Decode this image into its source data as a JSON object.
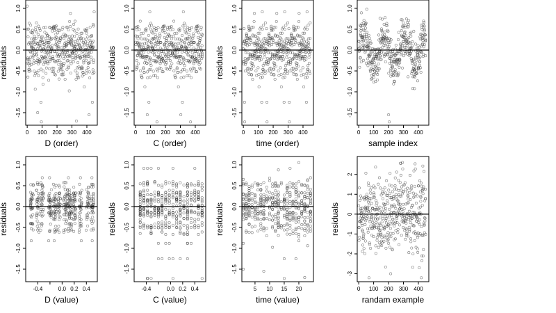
{
  "chart_data": [
    {
      "type": "scatter",
      "xlabel": "D (order)",
      "ylabel": "residuals",
      "xlim": [
        -10,
        470
      ],
      "ylim": [
        -1.8,
        1.2
      ],
      "xticks": [
        0,
        100,
        200,
        300,
        400
      ],
      "xtick_labels": [
        "0",
        "100",
        "200",
        "300",
        "400"
      ],
      "yticks": [
        -1.5,
        -1.0,
        -0.5,
        0.0,
        0.5,
        1.0
      ],
      "ytick_labels": [
        "-1.5",
        "-1.0",
        "-0.5",
        "0.0",
        "0.5",
        "1.0"
      ],
      "reference_line": 0,
      "points": "generated",
      "x_sample": "order",
      "n_points": 450,
      "data_note": "Residuals plotted against row order; dense cloud spread roughly between -1.7 and 1.1, centered near 0.",
      "hline_y": 0
    },
    {
      "type": "scatter",
      "xlabel": "C (order)",
      "ylabel": "residuals",
      "xlim": [
        -10,
        470
      ],
      "ylim": [
        -1.8,
        1.2
      ],
      "xticks": [
        0,
        100,
        200,
        300,
        400
      ],
      "xtick_labels": [
        "0",
        "100",
        "200",
        "300",
        "400"
      ],
      "yticks": [
        -1.5,
        -1.0,
        -0.5,
        0.0,
        0.5,
        1.0
      ],
      "ytick_labels": [
        "-1.5",
        "-1.0",
        "-0.5",
        "0.0",
        "0.5",
        "1.0"
      ],
      "reference_line": 0,
      "x_sample": "order",
      "n_points": 450
    },
    {
      "type": "scatter",
      "xlabel": "time (order)",
      "ylabel": "residuals",
      "xlim": [
        -10,
        470
      ],
      "ylim": [
        -1.8,
        1.2
      ],
      "xticks": [
        0,
        100,
        200,
        300,
        400
      ],
      "xtick_labels": [
        "0",
        "100",
        "200",
        "300",
        "400"
      ],
      "yticks": [
        -1.5,
        -1.0,
        -0.5,
        0.0,
        0.5,
        1.0
      ],
      "ytick_labels": [
        "-1.5",
        "-1.0",
        "-0.5",
        "0.0",
        "0.5",
        "1.0"
      ],
      "reference_line": 0,
      "x_sample": "order",
      "n_points": 450
    },
    {
      "type": "scatter",
      "xlabel": "sample index",
      "ylabel": "residuals",
      "xlim": [
        -10,
        470
      ],
      "ylim": [
        -1.8,
        1.2
      ],
      "xticks": [
        0,
        100,
        200,
        300,
        400
      ],
      "xtick_labels": [
        "0",
        "100",
        "200",
        "300",
        "400"
      ],
      "yticks": [
        -1.5,
        -1.0,
        -0.5,
        0.0,
        0.5,
        1.0
      ],
      "ytick_labels": [
        "-1.5",
        "-1.0",
        "-0.5",
        "0.0",
        "0.5",
        "1.0"
      ],
      "reference_line": 0,
      "x_sample": "order",
      "n_points": 450
    },
    {
      "type": "scatter",
      "xlabel": "D (value)",
      "ylabel": "residuals",
      "xlim": [
        -0.6,
        0.58
      ],
      "ylim": [
        -1.8,
        1.2
      ],
      "xticks": [
        -0.4,
        0.0,
        0.2,
        0.4
      ],
      "xtick_labels": [
        "-0.4",
        "0.0",
        "0.2",
        "0.4"
      ],
      "extra_xticks": [
        -0.2
      ],
      "yticks": [
        -1.5,
        -1.0,
        -0.5,
        0.0,
        0.5,
        1.0
      ],
      "ytick_labels": [
        "-1.5",
        "-1.0",
        "-0.5",
        "0.0",
        "0.5",
        "1.0"
      ],
      "reference_line": 0,
      "x_sample": "value",
      "n_points": 450
    },
    {
      "type": "scatter",
      "xlabel": "C (value)",
      "ylabel": "residuals",
      "xlim": [
        -0.6,
        0.58
      ],
      "ylim": [
        -1.8,
        1.2
      ],
      "xticks": [
        -0.4,
        0.0,
        0.2,
        0.4
      ],
      "xtick_labels": [
        "-0.4",
        "0.0",
        "0.2",
        "0.4"
      ],
      "extra_xticks": [
        -0.2
      ],
      "yticks": [
        -1.5,
        -1.0,
        -0.5,
        0.0,
        0.5,
        1.0
      ],
      "ytick_labels": [
        "-1.5",
        "-1.0",
        "-0.5",
        "0.0",
        "0.5",
        "1.0"
      ],
      "reference_line": 0,
      "x_sample": "columns",
      "x_columns": [
        -0.5,
        -0.44,
        -0.38,
        -0.32,
        -0.26,
        -0.2,
        -0.14,
        -0.08,
        -0.02,
        0.04,
        0.1,
        0.16,
        0.22,
        0.28,
        0.34,
        0.4,
        0.46,
        0.52
      ],
      "n_points": 450
    },
    {
      "type": "scatter",
      "xlabel": "time (value)",
      "ylabel": "residuals",
      "xlim": [
        0.5,
        25
      ],
      "ylim": [
        -1.8,
        1.2
      ],
      "xticks": [
        5,
        10,
        15,
        20
      ],
      "xtick_labels": [
        "5",
        "10",
        "15",
        "20"
      ],
      "yticks": [
        -1.5,
        -1.0,
        -0.5,
        0.0,
        0.5,
        1.0
      ],
      "ytick_labels": [
        "-1.5",
        "-1.0",
        "-0.5",
        "0.0",
        "0.5",
        "1.0"
      ],
      "reference_line": 0,
      "x_sample": "integers",
      "x_range": [
        1,
        24
      ],
      "n_points": 450
    },
    {
      "type": "scatter",
      "xlabel": "randam example",
      "ylabel": "residuals",
      "xlim": [
        -10,
        470
      ],
      "ylim": [
        -3.4,
        2.9
      ],
      "xticks": [
        0,
        100,
        200,
        300,
        400
      ],
      "xtick_labels": [
        "0",
        "100",
        "200",
        "300",
        "400"
      ],
      "yticks": [
        -3,
        -2,
        -1,
        0,
        1,
        2
      ],
      "ytick_labels": [
        "-3",
        "-2",
        "-1",
        "0",
        "1",
        "2"
      ],
      "reference_line": 0,
      "x_sample": "order",
      "y_scale": 1.0,
      "n_points": 450
    }
  ],
  "colors": {
    "background": "#ffffff",
    "frame": "#000000",
    "points": "#3a3a3a"
  }
}
